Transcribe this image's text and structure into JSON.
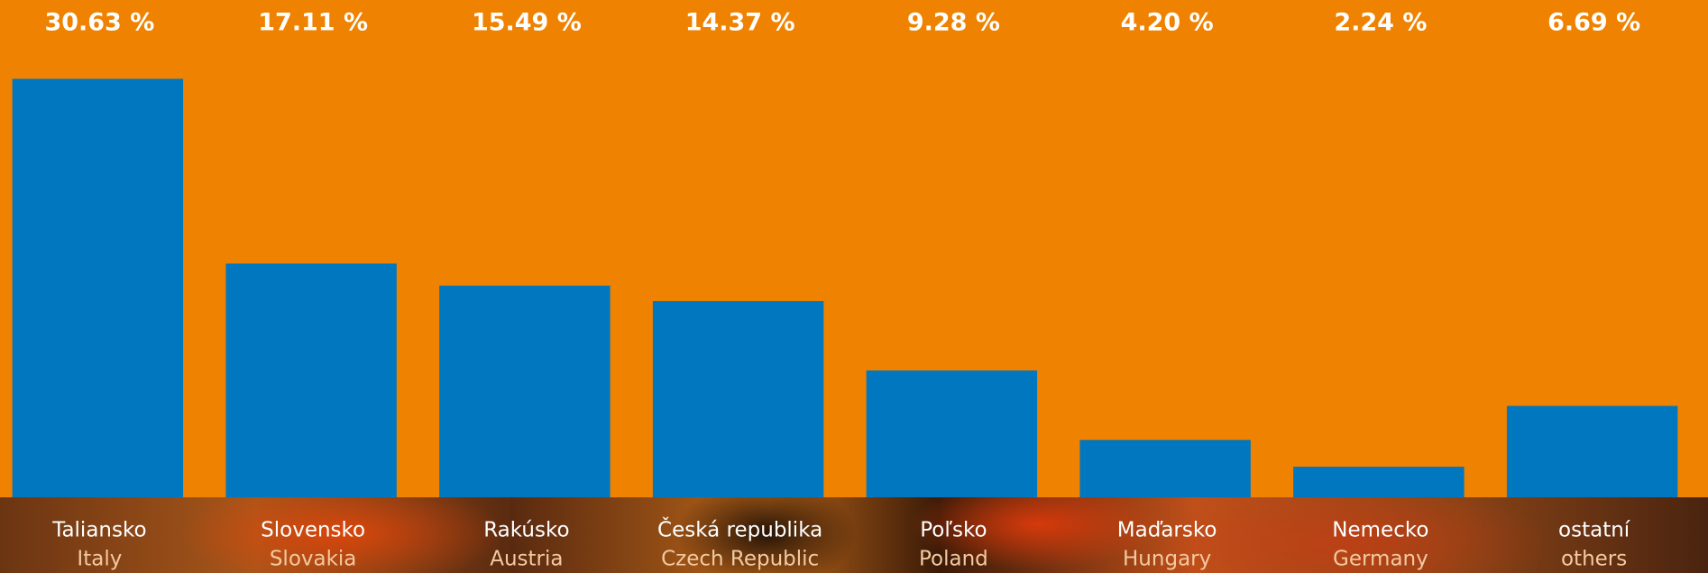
{
  "chart_data": {
    "type": "bar",
    "categories": [
      "Taliansko",
      "Slovensko",
      "Rakúsko",
      "Česká republika",
      "Poľsko",
      "Maďarsko",
      "Nemecko",
      "ostatní"
    ],
    "subcategories": [
      "Italy",
      "Slovakia",
      "Austria",
      "Czech Republic",
      "Poland",
      "Hungary",
      "Germany",
      "others"
    ],
    "values": [
      30.63,
      17.11,
      15.49,
      14.37,
      9.28,
      4.2,
      2.24,
      6.69
    ],
    "value_labels": [
      "30.63 %",
      "17.11 %",
      "15.49 %",
      "14.37 %",
      "9.28 %",
      "4.20 %",
      "2.24 %",
      "6.69 %"
    ],
    "color": "#0077be",
    "ylim": [
      0,
      36.4
    ]
  }
}
